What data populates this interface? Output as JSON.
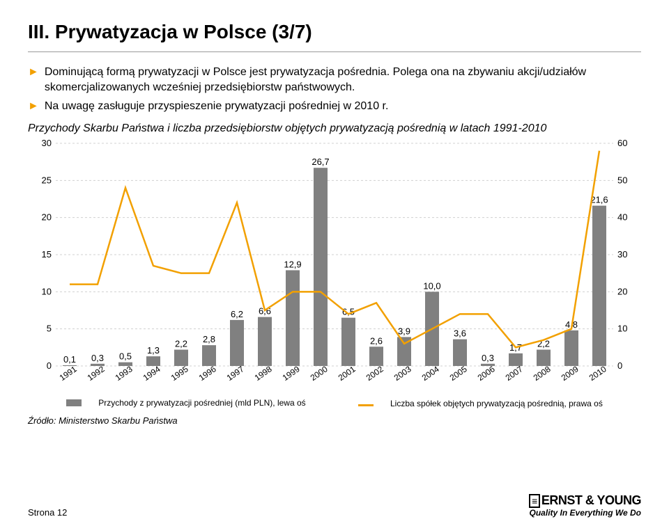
{
  "title": "III. Prywatyzacja w Polsce (3/7)",
  "bullets": [
    "Dominującą formą prywatyzacji w Polsce jest prywatyzacja pośrednia. Polega ona na zbywaniu akcji/udziałów skomercjalizowanych wcześniej przedsiębiorstw państwowych.",
    "Na uwagę zasługuje przyspieszenie prywatyzacji pośredniej w 2010 r."
  ],
  "subtitle": "Przychody Skarbu Państwa i liczba przedsiębiorstw objętych prywatyzacją pośrednią w latach 1991-2010",
  "chart": {
    "background_color": "#ffffff",
    "grid_color": "#d0d0d0",
    "bar_color": "#808080",
    "line_color": "#f2a000",
    "categories": [
      "1991",
      "1992",
      "1993",
      "1994",
      "1995",
      "1996",
      "1997",
      "1998",
      "1999",
      "2000",
      "2001",
      "2002",
      "2003",
      "2004",
      "2005",
      "2006",
      "2007",
      "2008",
      "2009",
      "2010"
    ],
    "bar_values": [
      0.1,
      0.3,
      0.5,
      1.3,
      2.2,
      2.8,
      6.2,
      6.6,
      12.9,
      26.7,
      6.5,
      2.6,
      3.9,
      10.0,
      3.6,
      0.3,
      1.7,
      2.2,
      4.8,
      21.6
    ],
    "bar_labels": [
      "0,1",
      "0,3",
      "0,5",
      "1,3",
      "2,2",
      "2,8",
      "6,2",
      "6,6",
      "12,9",
      "26,7",
      "6,5",
      "2,6",
      "3,9",
      "10,0",
      "3,6",
      "0,3",
      "1,7",
      "2,2",
      "4,8",
      "21,6"
    ],
    "line_values_est": [
      22,
      22,
      48,
      27,
      25,
      25,
      44,
      15,
      20,
      20,
      14,
      17,
      6,
      10,
      14,
      14,
      5,
      7,
      10,
      58
    ],
    "left_axis": {
      "min": 0,
      "max": 30,
      "step": 5
    },
    "right_axis": {
      "min": 0,
      "max": 60,
      "step": 10
    },
    "legend_bar": "Przychody z prywatyzacji pośredniej (mld PLN), lewa oś",
    "legend_line": "Liczba spółek objętych prywatyzacją pośrednią, prawa oś",
    "value_label_fontsize": 13,
    "axis_fontsize": 13,
    "line_width": 2.5,
    "bar_width_ratio": 0.5
  },
  "source": "Źródło: Ministerstwo Skarbu Państwa",
  "page": "Strona 12",
  "brand": {
    "name": "ERNST & YOUNG",
    "tag": "Quality In Everything We Do"
  }
}
